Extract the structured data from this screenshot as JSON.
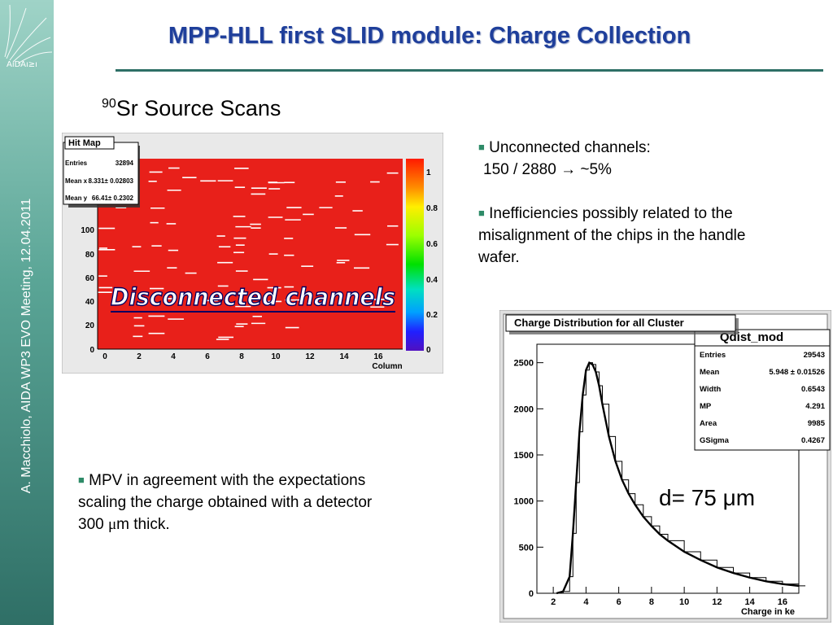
{
  "sidebar": {
    "text": "A. Macchiolo,  AIDA WP3 EVO Meeting, 12.04.2011",
    "logo_icon": "aida-logo-icon"
  },
  "header": {
    "title": "MPP-HLL first SLID module: Charge Collection",
    "subtitle_sup": "90",
    "subtitle": "Sr Source  Scans"
  },
  "bullets_top": [
    {
      "line1": "Unconnected channels:",
      "line2a": "150 / 2880 ",
      "arrow": "→",
      "line2b": " ~5%"
    },
    {
      "lines": [
        "Inefficiencies possibly related to the",
        "misalignment of the chips in the handle",
        "wafer."
      ]
    }
  ],
  "bullet_bottom": {
    "line1": "MPV in agreement with the expectations",
    "line2": "scaling the charge obtained with a detector",
    "line3a": "300 ",
    "mu": "μ",
    "line3b": "m  thick."
  },
  "hitmap": {
    "title": "Hit Map",
    "stats": [
      {
        "label": "Entries",
        "value": "32894"
      },
      {
        "label": "Mean x",
        "value": "8.331± 0.02803"
      },
      {
        "label": "Mean y",
        "value": "66.41± 0.2302"
      }
    ],
    "y_ticks": [
      "100",
      "80",
      "60",
      "40",
      "20",
      "0"
    ],
    "x_ticks": [
      "0",
      "2",
      "4",
      "6",
      "8",
      "10",
      "12",
      "14",
      "16"
    ],
    "xlabel": "Column",
    "z_ticks": [
      "1",
      "0.8",
      "0.6",
      "0.4",
      "0.2",
      "0"
    ],
    "annotation": "Disconnected channels",
    "colors": {
      "fill": "#e8201a",
      "dead": "#ffffff"
    }
  },
  "chart_data": {
    "type": "line",
    "title": "Charge Distribution for all Cluster",
    "hist_name": "Qdist_mod",
    "xlabel": "Charge in ke",
    "ylabel": "",
    "xlim": [
      1,
      17
    ],
    "ylim": [
      0,
      2700
    ],
    "x_ticks": [
      "2",
      "4",
      "6",
      "8",
      "10",
      "12",
      "14",
      "16"
    ],
    "y_ticks": [
      "0",
      "500",
      "1000",
      "1500",
      "2000",
      "2500"
    ],
    "stats": [
      {
        "label": "Entries",
        "value": "29543"
      },
      {
        "label": "Mean",
        "value": "5.948 ± 0.01526"
      },
      {
        "label": "Width",
        "value": "0.6543"
      },
      {
        "label": "MP",
        "value": "4.291"
      },
      {
        "label": "Area",
        "value": "9985"
      },
      {
        "label": "GSigma",
        "value": "0.4267"
      }
    ],
    "series": [
      {
        "x": [
          2.2,
          2.6,
          3.0,
          3.2,
          3.4,
          3.6,
          3.8,
          4.0,
          4.2,
          4.4,
          4.6,
          4.8,
          5.0,
          5.4,
          5.8,
          6.2,
          6.6,
          7.0,
          7.5,
          8.0,
          8.5,
          9,
          10,
          11,
          12,
          13,
          14,
          15,
          16,
          17
        ],
        "y": [
          0,
          20,
          180,
          650,
          1200,
          1750,
          2150,
          2420,
          2500,
          2480,
          2400,
          2250,
          2050,
          1700,
          1430,
          1230,
          1080,
          960,
          830,
          730,
          640,
          570,
          450,
          360,
          280,
          220,
          170,
          130,
          100,
          80
        ]
      }
    ],
    "annotation": "d= 75 μm"
  }
}
